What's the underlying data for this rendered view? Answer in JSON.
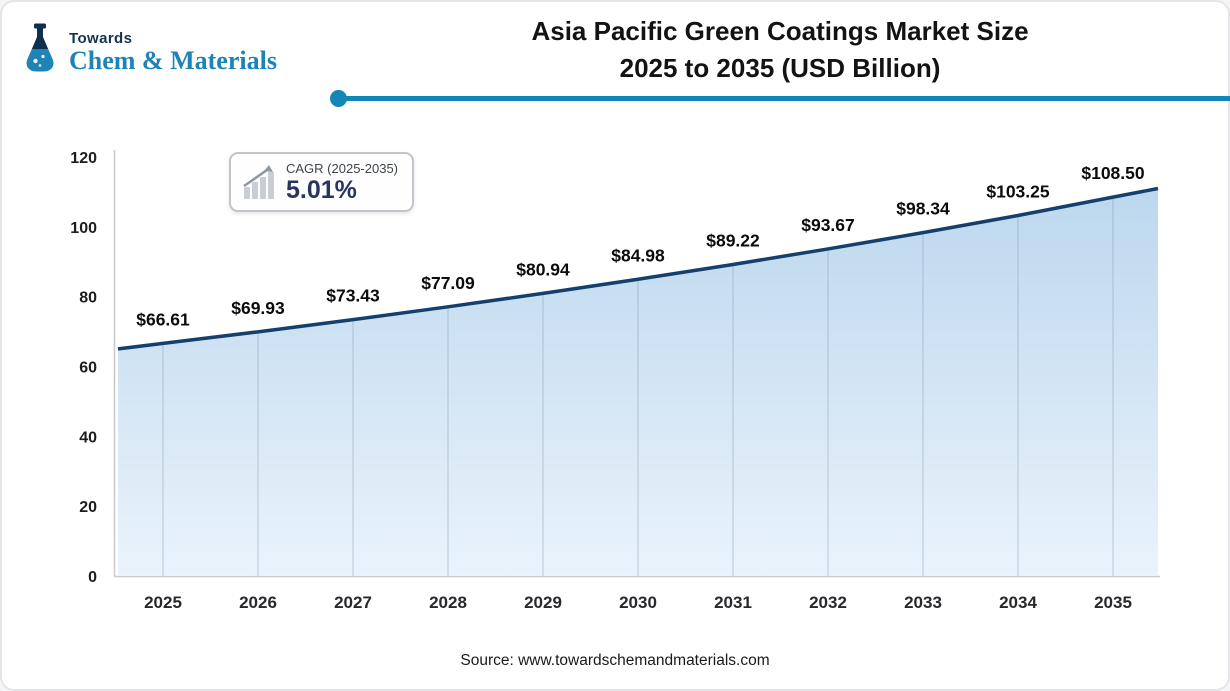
{
  "logo": {
    "tagline": "Towards",
    "brand": "Chem & Materials"
  },
  "header": {
    "title_line1": "Asia Pacific Green Coatings Market Size",
    "title_line2": "2025 to 2035 (USD Billion)"
  },
  "cagr_badge": {
    "label": "CAGR (2025-2035)",
    "value": "5.01%"
  },
  "chart_data": {
    "type": "area",
    "title": "Asia Pacific Green Coatings Market Size 2025 to 2035 (USD Billion)",
    "categories": [
      "2025",
      "2026",
      "2027",
      "2028",
      "2029",
      "2030",
      "2031",
      "2032",
      "2033",
      "2034",
      "2035"
    ],
    "values": [
      66.61,
      69.93,
      73.43,
      77.09,
      80.94,
      84.98,
      89.22,
      93.67,
      98.34,
      103.25,
      108.5
    ],
    "value_prefix": "$",
    "xlabel": "",
    "ylabel": "",
    "ylim": [
      0,
      120
    ],
    "yticks": [
      0,
      20,
      40,
      60,
      80,
      100,
      120
    ],
    "grid": "vertical-only",
    "legend": "none",
    "cagr": {
      "label": "CAGR (2025-2035)",
      "value_pct": 5.01
    },
    "colors": {
      "line": "#15406e",
      "area_top": "#bcd7ee",
      "area_bottom": "#eaf3fb",
      "gridline": "#7d94ac"
    }
  },
  "footer": {
    "source": "Source: www.towardschemandmaterials.com"
  },
  "theme": {
    "accent_teal": "#1286b5",
    "brand_blue": "#1d84b5",
    "navy": "#12354f",
    "title_text": "#131313"
  }
}
